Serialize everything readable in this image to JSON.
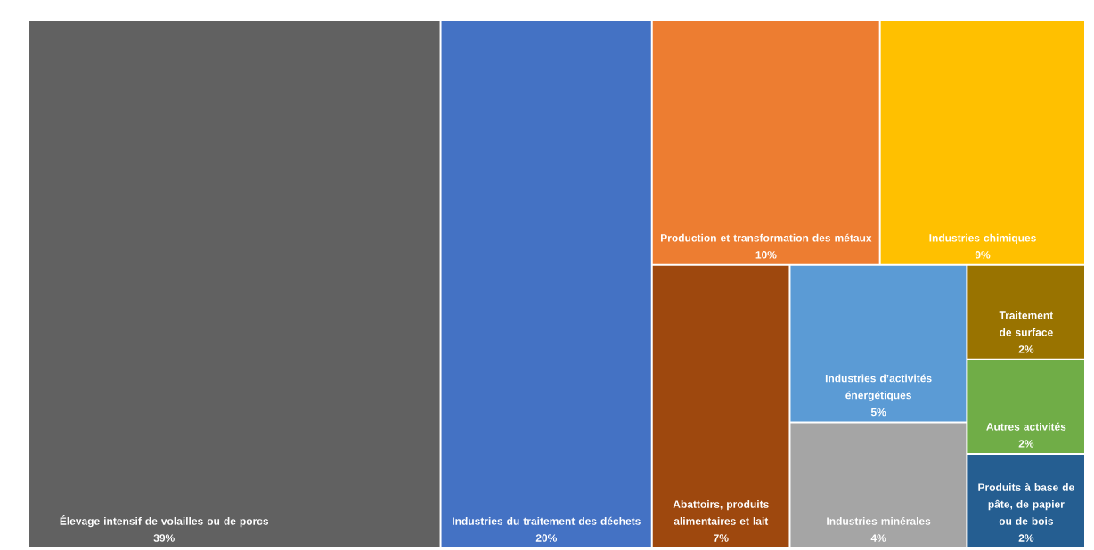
{
  "chart_data": {
    "type": "other",
    "categories": [
      "Élevage intensif de volailles ou de porcs",
      "Industries du traitement des déchets",
      "Production et transformation des métaux",
      "Industries chimiques",
      "Abattoirs, produits alimentaires et lait",
      "Industries d’activités énergétiques",
      "Industries minérales",
      "Traitement de surface",
      "Autres activités",
      "Produits à base de pâte, de papier ou de bois"
    ],
    "values": [
      39,
      20,
      10,
      9,
      7,
      5,
      4,
      2,
      2,
      2
    ],
    "value_labels": [
      "39%",
      "20%",
      "10%",
      "9%",
      "7%",
      "5%",
      "4%",
      "2%",
      "2%",
      "2%"
    ],
    "colors": [
      "#616161",
      "#4472c4",
      "#ed7d31",
      "#ffc000",
      "#9e480e",
      "#5b9bd5",
      "#a5a5a5",
      "#997300",
      "#70ad47",
      "#255e91"
    ]
  }
}
